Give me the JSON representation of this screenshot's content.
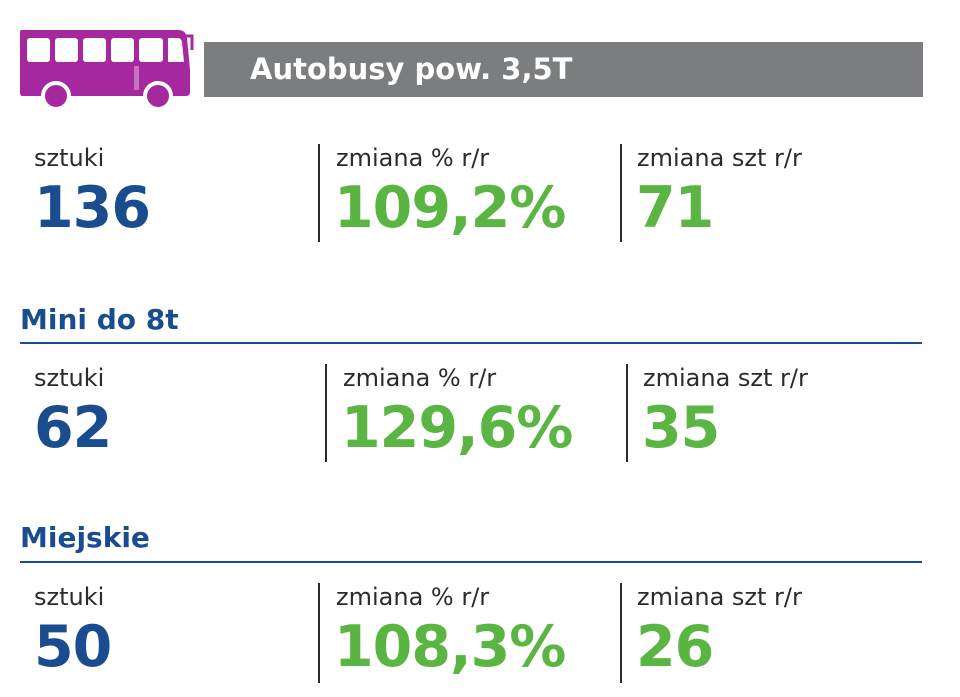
{
  "header": {
    "title": "Autobusy pow. 3,5T",
    "icon": "bus-icon",
    "icon_color": "#a6289e",
    "bar_color": "#7b7d7f"
  },
  "colors": {
    "count_value": "#1a4d8f",
    "change_value": "#5bb543",
    "section_heading": "#1a4d8f"
  },
  "sections": [
    {
      "title": "",
      "stats": [
        {
          "label": "sztuki",
          "value": "136"
        },
        {
          "label": "zmiana % r/r",
          "value": "109,2%"
        },
        {
          "label": "zmiana szt r/r",
          "value": "71"
        }
      ]
    },
    {
      "title": "Mini do 8t",
      "stats": [
        {
          "label": "sztuki",
          "value": "62"
        },
        {
          "label": "zmiana % r/r",
          "value": "129,6%"
        },
        {
          "label": "zmiana szt r/r",
          "value": "35"
        }
      ]
    },
    {
      "title": "Miejskie",
      "stats": [
        {
          "label": "sztuki",
          "value": "50"
        },
        {
          "label": "zmiana % r/r",
          "value": "108,3%"
        },
        {
          "label": "zmiana szt r/r",
          "value": "26"
        }
      ]
    }
  ]
}
